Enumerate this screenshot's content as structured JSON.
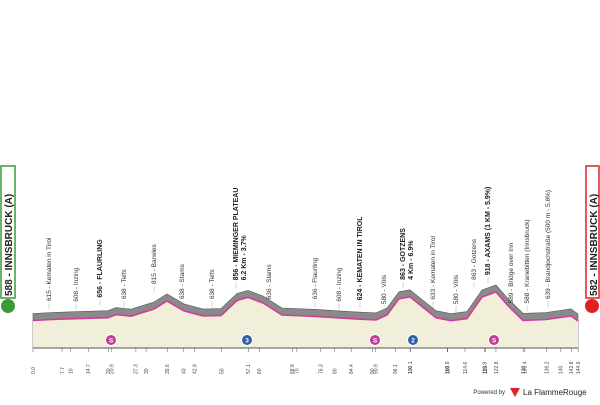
{
  "start": {
    "label": "588 - INNSBRUCK (A)"
  },
  "finish": {
    "label": "582 - INNSBRUCK (A)"
  },
  "waypoints": [
    {
      "alt": 615,
      "label": "615 - Kematen in Tirol"
    },
    {
      "alt": 608,
      "label": "608 - Inzing"
    },
    {
      "alt": 656,
      "label": "656 - FLAURLING",
      "bold": true
    },
    {
      "alt": 638,
      "label": "638 - Telfs"
    },
    {
      "alt": 815,
      "label": "815 - Barwies"
    },
    {
      "alt": 638,
      "label": "638 - Stams"
    },
    {
      "alt": 638,
      "label": "638 - Telfs"
    },
    {
      "alt": 856,
      "label": "856 - MIEMINGER PLATEAU",
      "detail": "6.2 Km - 3.7%",
      "bold": true
    },
    {
      "alt": 636,
      "label": "636 - Stams"
    },
    {
      "alt": 636,
      "label": "636 - Flaurling"
    },
    {
      "alt": 608,
      "label": "608 - Inzing"
    },
    {
      "alt": 624,
      "label": "624 - KEMATEN IN TIROL",
      "bold": true
    },
    {
      "alt": 580,
      "label": "580 - Völs"
    },
    {
      "alt": 863,
      "label": "863 - GOTZENS",
      "detail": "4 Km - 6.9%",
      "bold": true
    },
    {
      "alt": 633,
      "label": "633 - Kematen in Tirol"
    },
    {
      "alt": 580,
      "label": "580 - Völs"
    },
    {
      "alt": 863,
      "label": "863 - Gotzens"
    },
    {
      "alt": 918,
      "label": "918 - AXAMS (1 KM - 5.9%)",
      "bold": true
    },
    {
      "alt": 589,
      "label": "589 - Bridge over Inn"
    },
    {
      "alt": 588,
      "label": "588 - Kranebitten (Innsbruck)"
    },
    {
      "alt": 639,
      "label": "639 - Brandjochstraße (500 m - 5.8%)"
    }
  ],
  "km_markers": [
    "0.0",
    "7.7",
    "10",
    "14.7",
    "20",
    "20.9",
    "27.3",
    "30",
    "35.6",
    "40",
    "42.9",
    "50",
    "57.1",
    "60",
    "68.8",
    "70",
    "76.3",
    "80",
    "84.4",
    "90",
    "90.9",
    "96.1",
    "100",
    "100.1",
    "109.9",
    "110",
    "114.6",
    "119.8",
    "120",
    "122.8",
    "130",
    "130.4",
    "136.2",
    "140",
    "142.8",
    "144.6"
  ],
  "icons": [
    {
      "kind": "sprint",
      "label": "S"
    },
    {
      "kind": "kom",
      "label": "3"
    },
    {
      "kind": "sprint",
      "label": "S"
    },
    {
      "kind": "kom",
      "label": "2"
    },
    {
      "kind": "sprint",
      "label": "S"
    }
  ],
  "footer": {
    "powered": "Powered by",
    "brand": "La FlammeRouge"
  }
}
